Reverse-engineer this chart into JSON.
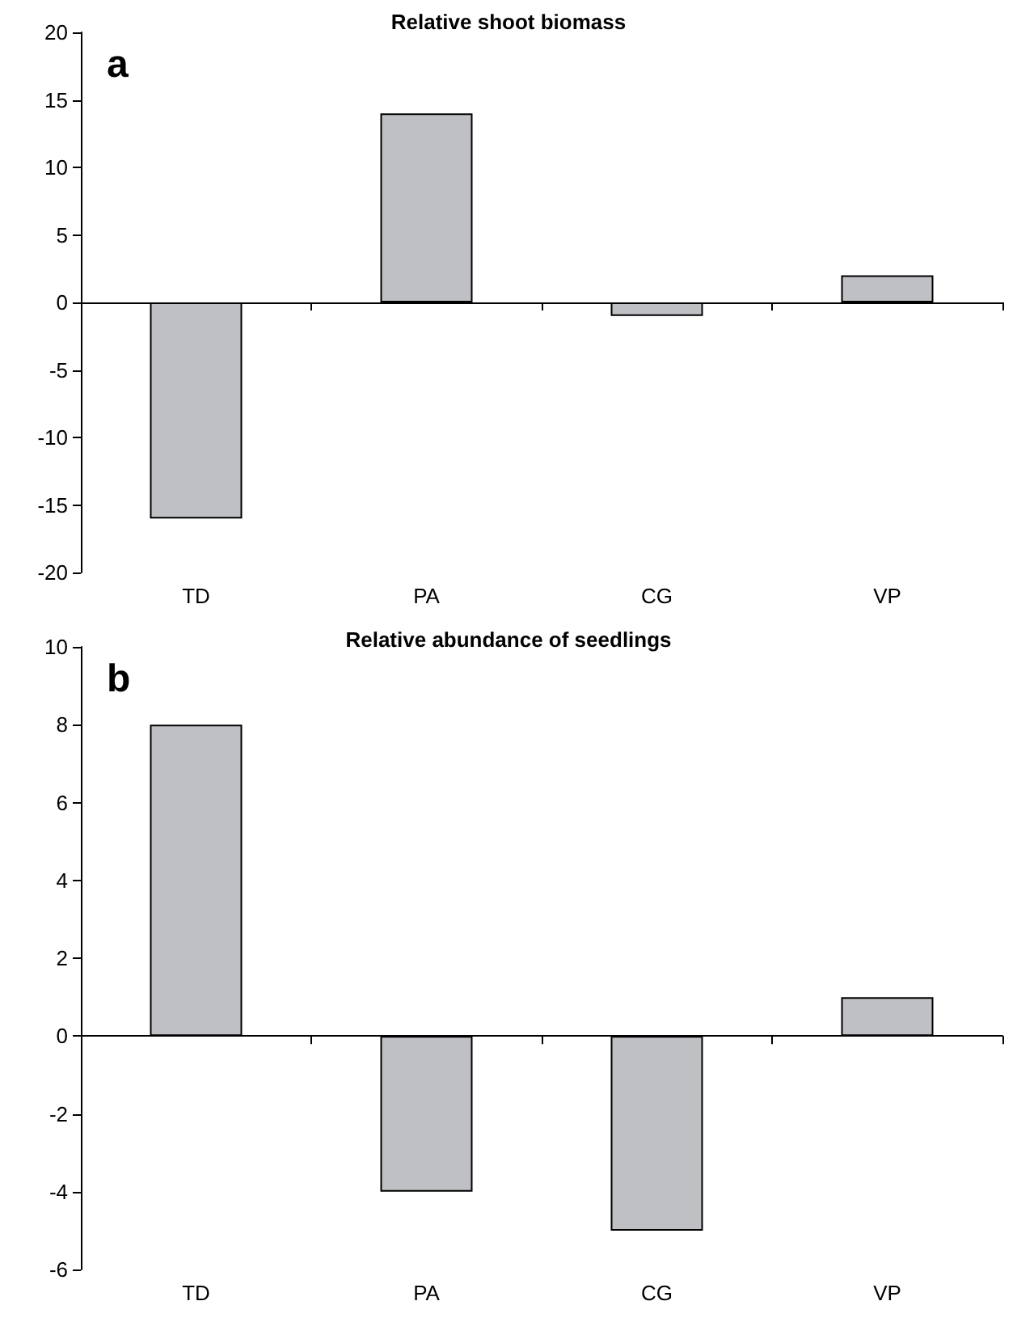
{
  "chart_data": [
    {
      "type": "bar",
      "title": "Relative shoot biomass",
      "annotations": [
        "a"
      ],
      "categories": [
        "TD",
        "PA",
        "CG",
        "VP"
      ],
      "values": [
        -16,
        14,
        -1,
        2
      ],
      "color": "#bfc0c4",
      "ylim": [
        -20,
        20
      ],
      "yticks": [
        -20,
        -15,
        -10,
        -5,
        0,
        5,
        10,
        15,
        20
      ]
    },
    {
      "type": "bar",
      "title": "Relative abundance of seedlings",
      "annotations": [
        "b"
      ],
      "categories": [
        "TD",
        "PA",
        "CG",
        "VP"
      ],
      "values": [
        8,
        -4,
        -5,
        1
      ],
      "color": "#bfc0c4",
      "ylim": [
        -6,
        10
      ],
      "yticks": [
        -6,
        -4,
        -2,
        0,
        2,
        4,
        6,
        8,
        10
      ]
    }
  ]
}
